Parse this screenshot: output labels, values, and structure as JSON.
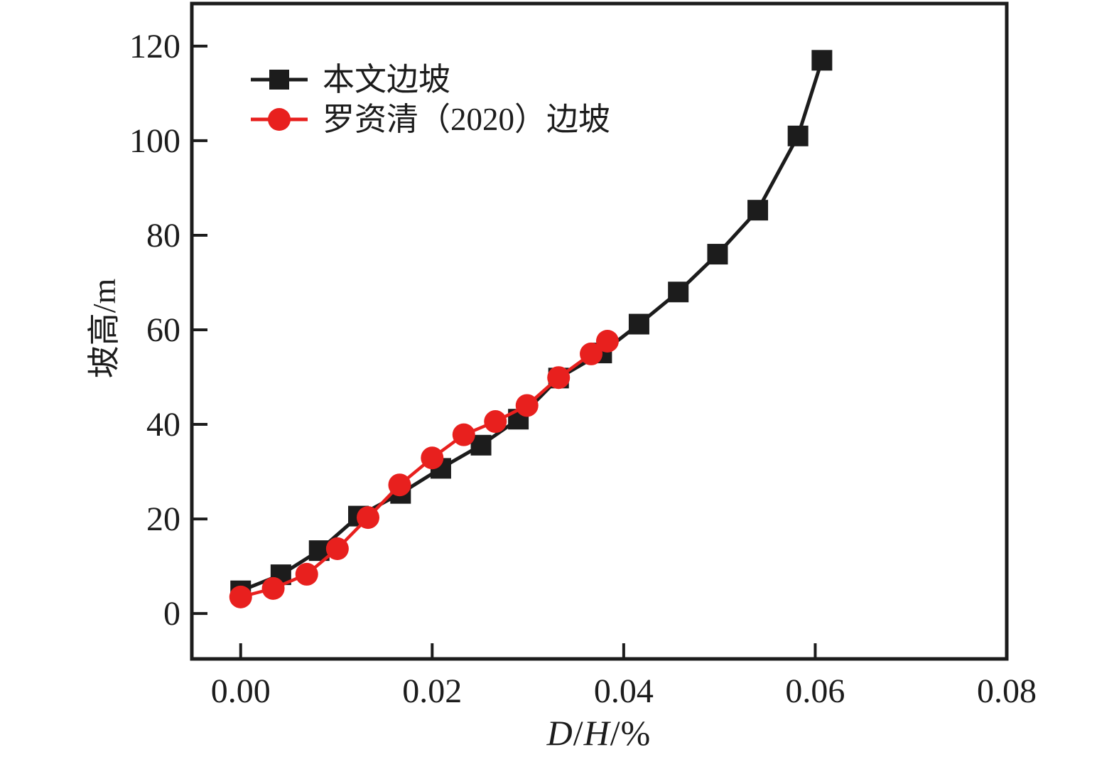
{
  "axes": {
    "y_label": "坡高/m",
    "x_label_parts": [
      "D",
      "/",
      "H",
      "/%"
    ]
  },
  "chart_data": {
    "type": "line",
    "title": "",
    "xlabel": "D/H/%",
    "ylabel": "坡高/m",
    "xlim": [
      -0.0051,
      0.08
    ],
    "ylim": [
      -9.6,
      129
    ],
    "x_ticks": [
      0.0,
      0.02,
      0.04,
      0.06,
      0.08
    ],
    "x_tick_labels": [
      "0.00",
      "0.02",
      "0.04",
      "0.06",
      "0.08"
    ],
    "y_ticks": [
      0,
      20,
      40,
      60,
      80,
      100,
      120
    ],
    "y_tick_labels": [
      "0",
      "20",
      "40",
      "60",
      "80",
      "100",
      "120"
    ],
    "grid": false,
    "legend_position": "inside-top-left",
    "axis_color": "#1c1c1c",
    "text_color": "#1c1c1c",
    "series": [
      {
        "name": "本文边坡",
        "color": "#1c1c1c",
        "marker": "square",
        "points": [
          [
            0.0,
            4.8
          ],
          [
            0.0042,
            8.2
          ],
          [
            0.0082,
            13.3
          ],
          [
            0.0123,
            20.6
          ],
          [
            0.0167,
            25.4
          ],
          [
            0.0209,
            30.7
          ],
          [
            0.0251,
            35.6
          ],
          [
            0.029,
            41.1
          ],
          [
            0.0332,
            49.8
          ],
          [
            0.0377,
            55.1
          ],
          [
            0.0416,
            61.2
          ],
          [
            0.0457,
            68.0
          ],
          [
            0.0498,
            76.0
          ],
          [
            0.054,
            85.3
          ],
          [
            0.0582,
            101.0
          ],
          [
            0.0607,
            117.0
          ]
        ]
      },
      {
        "name": "罗资清（2020）边坡",
        "color": "#e8201e",
        "marker": "circle",
        "points": [
          [
            0.0,
            3.5
          ],
          [
            0.0034,
            5.3
          ],
          [
            0.0069,
            8.3
          ],
          [
            0.0101,
            13.7
          ],
          [
            0.0133,
            20.3
          ],
          [
            0.0166,
            27.2
          ],
          [
            0.02,
            32.9
          ],
          [
            0.0233,
            37.8
          ],
          [
            0.0266,
            40.6
          ],
          [
            0.0299,
            44.0
          ],
          [
            0.0332,
            49.9
          ],
          [
            0.0366,
            54.9
          ],
          [
            0.0383,
            57.6
          ]
        ]
      }
    ]
  }
}
